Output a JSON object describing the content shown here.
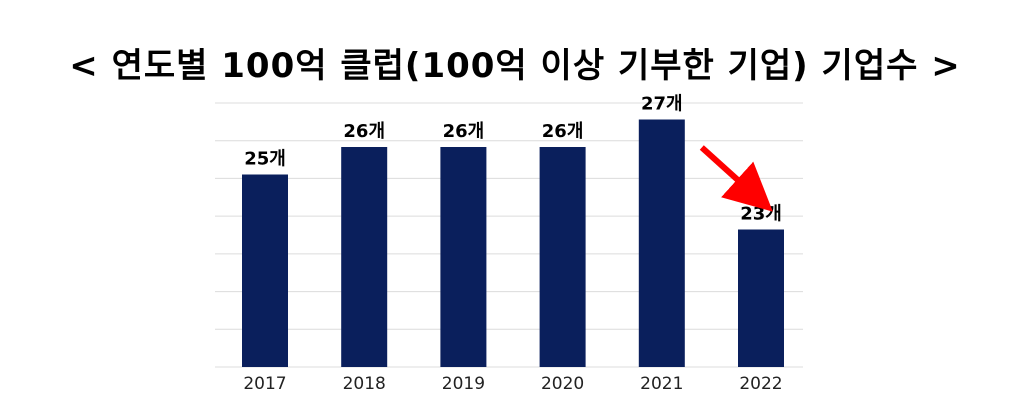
{
  "chart_data": {
    "type": "bar",
    "title": "< 연도별 100억 클럽(100억 이상 기부한 기업) 기업수 >",
    "categories": [
      "2017",
      "2018",
      "2019",
      "2020",
      "2021",
      "2022"
    ],
    "values": [
      25,
      26,
      26,
      26,
      27,
      23
    ],
    "data_labels": [
      "25개",
      "26개",
      "26개",
      "26개",
      "27개",
      "23개"
    ],
    "ylim": [
      18,
      27.6
    ],
    "grid": true,
    "bar_color": "#0a1f5c",
    "annotation": {
      "type": "arrow",
      "from_category": "2021",
      "to_category": "2022",
      "color": "#ff0000"
    }
  }
}
